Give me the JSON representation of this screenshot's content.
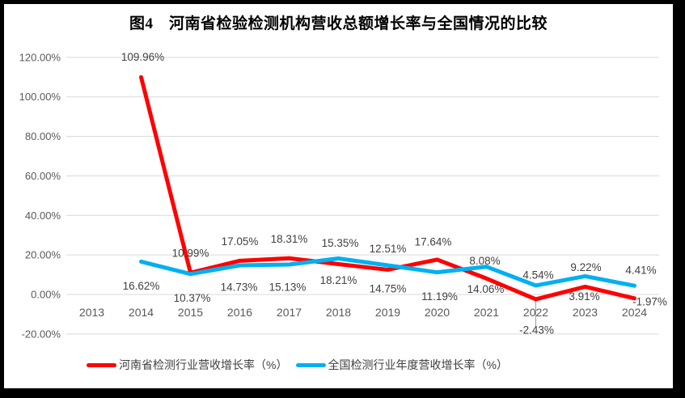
{
  "chart_data": {
    "type": "line",
    "title": "图4　河南省检验检测机构营收总额增长率与全国情况的比较",
    "categories": [
      "2013",
      "2014",
      "2015",
      "2016",
      "2017",
      "2018",
      "2019",
      "2020",
      "2021",
      "2022",
      "2023",
      "2024"
    ],
    "series": [
      {
        "name": "河南省检测行业营收增长率（%）",
        "color": "#FF0000",
        "values": [
          null,
          109.96,
          10.99,
          17.05,
          18.31,
          15.35,
          12.51,
          17.64,
          8.08,
          -2.43,
          3.91,
          -1.97
        ],
        "labels": [
          "",
          "109.96%",
          "10.99%",
          "17.05%",
          "18.31%",
          "15.35%",
          "12.51%",
          "17.64%",
          "8.08%",
          "-2.43%",
          "3.91%",
          "-1.97%"
        ],
        "label_position": "above"
      },
      {
        "name": "全国检测行业年度营收增长率（%）",
        "color": "#00B0F0",
        "values": [
          null,
          16.62,
          10.37,
          14.73,
          15.13,
          18.21,
          14.75,
          11.19,
          14.06,
          4.54,
          9.22,
          4.41
        ],
        "labels": [
          "",
          "16.62%",
          "10.37%",
          "14.73%",
          "15.13%",
          "18.21%",
          "14.75%",
          "11.19%",
          "14.06%",
          "4.54%",
          "9.22%",
          "4.41%"
        ],
        "label_position": "below"
      }
    ],
    "y_axis": {
      "min": -20,
      "max": 120,
      "step": 20,
      "tick_labels": [
        "120.00%",
        "100.00%",
        "80.00%",
        "60.00%",
        "40.00%",
        "20.00%",
        "0.00%",
        "-20.00%"
      ]
    },
    "grid": true,
    "legend_position": "bottom",
    "style_colors": {
      "gridline": "#D9D9D9",
      "axis_text": "#595959",
      "data_label": "#404040",
      "leader_line": "#9E9E9E",
      "background": "#FFFFFF",
      "frame": "#000000"
    }
  }
}
